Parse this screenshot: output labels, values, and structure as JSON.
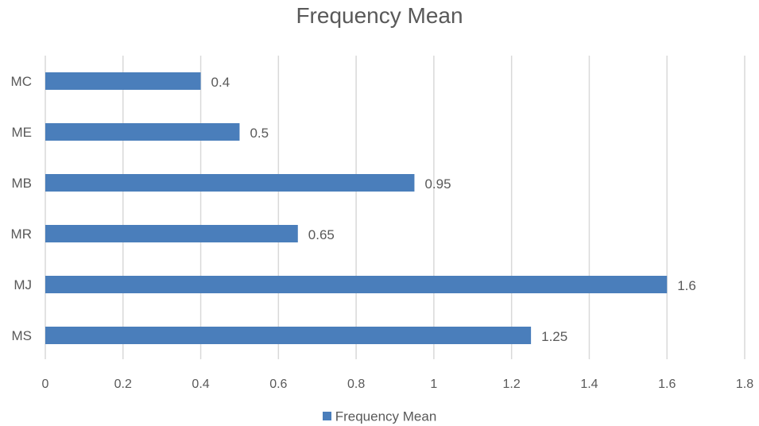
{
  "chart_data": {
    "type": "bar",
    "orientation": "horizontal",
    "title": "Frequency Mean",
    "categories": [
      "MC",
      "ME",
      "MB",
      "MR",
      "MJ",
      "MS"
    ],
    "series": [
      {
        "name": "Frequency Mean",
        "values": [
          0.4,
          0.5,
          0.95,
          0.65,
          1.6,
          1.25
        ],
        "color": "#4A7EBB"
      }
    ],
    "data_labels": [
      "0.4",
      "0.5",
      "0.95",
      "0.65",
      "1.6",
      "1.25"
    ],
    "xlim": [
      0,
      1.8
    ],
    "x_ticks": [
      "0",
      "0.2",
      "0.4",
      "0.6",
      "0.8",
      "1",
      "1.2",
      "1.4",
      "1.6",
      "1.8"
    ],
    "grid": true,
    "legend": "bottom"
  }
}
